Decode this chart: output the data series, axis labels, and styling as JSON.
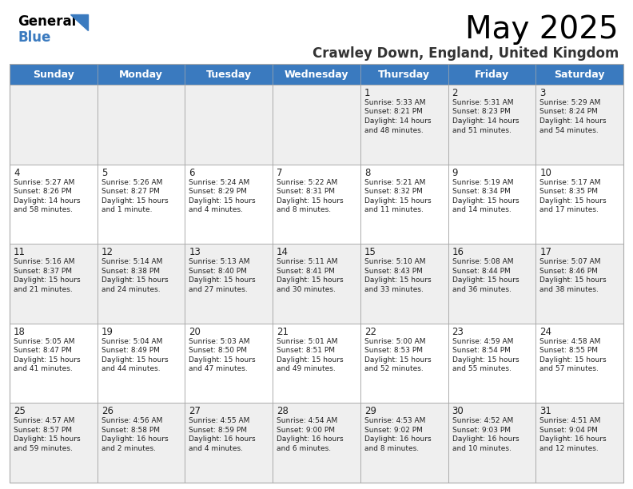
{
  "title": "May 2025",
  "subtitle": "Crawley Down, England, United Kingdom",
  "header_bg": "#3a7abf",
  "header_text": "#ffffff",
  "days_of_week": [
    "Sunday",
    "Monday",
    "Tuesday",
    "Wednesday",
    "Thursday",
    "Friday",
    "Saturday"
  ],
  "row_bg_even": "#efefef",
  "row_bg_odd": "#ffffff",
  "grid_color": "#aaaaaa",
  "text_color": "#222222",
  "calendar": [
    [
      {
        "day": "",
        "sunrise": "",
        "sunset": "",
        "daylight": ""
      },
      {
        "day": "",
        "sunrise": "",
        "sunset": "",
        "daylight": ""
      },
      {
        "day": "",
        "sunrise": "",
        "sunset": "",
        "daylight": ""
      },
      {
        "day": "",
        "sunrise": "",
        "sunset": "",
        "daylight": ""
      },
      {
        "day": "1",
        "sunrise": "5:33 AM",
        "sunset": "8:21 PM",
        "daylight": "14 hours\nand 48 minutes."
      },
      {
        "day": "2",
        "sunrise": "5:31 AM",
        "sunset": "8:23 PM",
        "daylight": "14 hours\nand 51 minutes."
      },
      {
        "day": "3",
        "sunrise": "5:29 AM",
        "sunset": "8:24 PM",
        "daylight": "14 hours\nand 54 minutes."
      }
    ],
    [
      {
        "day": "4",
        "sunrise": "5:27 AM",
        "sunset": "8:26 PM",
        "daylight": "14 hours\nand 58 minutes."
      },
      {
        "day": "5",
        "sunrise": "5:26 AM",
        "sunset": "8:27 PM",
        "daylight": "15 hours\nand 1 minute."
      },
      {
        "day": "6",
        "sunrise": "5:24 AM",
        "sunset": "8:29 PM",
        "daylight": "15 hours\nand 4 minutes."
      },
      {
        "day": "7",
        "sunrise": "5:22 AM",
        "sunset": "8:31 PM",
        "daylight": "15 hours\nand 8 minutes."
      },
      {
        "day": "8",
        "sunrise": "5:21 AM",
        "sunset": "8:32 PM",
        "daylight": "15 hours\nand 11 minutes."
      },
      {
        "day": "9",
        "sunrise": "5:19 AM",
        "sunset": "8:34 PM",
        "daylight": "15 hours\nand 14 minutes."
      },
      {
        "day": "10",
        "sunrise": "5:17 AM",
        "sunset": "8:35 PM",
        "daylight": "15 hours\nand 17 minutes."
      }
    ],
    [
      {
        "day": "11",
        "sunrise": "5:16 AM",
        "sunset": "8:37 PM",
        "daylight": "15 hours\nand 21 minutes."
      },
      {
        "day": "12",
        "sunrise": "5:14 AM",
        "sunset": "8:38 PM",
        "daylight": "15 hours\nand 24 minutes."
      },
      {
        "day": "13",
        "sunrise": "5:13 AM",
        "sunset": "8:40 PM",
        "daylight": "15 hours\nand 27 minutes."
      },
      {
        "day": "14",
        "sunrise": "5:11 AM",
        "sunset": "8:41 PM",
        "daylight": "15 hours\nand 30 minutes."
      },
      {
        "day": "15",
        "sunrise": "5:10 AM",
        "sunset": "8:43 PM",
        "daylight": "15 hours\nand 33 minutes."
      },
      {
        "day": "16",
        "sunrise": "5:08 AM",
        "sunset": "8:44 PM",
        "daylight": "15 hours\nand 36 minutes."
      },
      {
        "day": "17",
        "sunrise": "5:07 AM",
        "sunset": "8:46 PM",
        "daylight": "15 hours\nand 38 minutes."
      }
    ],
    [
      {
        "day": "18",
        "sunrise": "5:05 AM",
        "sunset": "8:47 PM",
        "daylight": "15 hours\nand 41 minutes."
      },
      {
        "day": "19",
        "sunrise": "5:04 AM",
        "sunset": "8:49 PM",
        "daylight": "15 hours\nand 44 minutes."
      },
      {
        "day": "20",
        "sunrise": "5:03 AM",
        "sunset": "8:50 PM",
        "daylight": "15 hours\nand 47 minutes."
      },
      {
        "day": "21",
        "sunrise": "5:01 AM",
        "sunset": "8:51 PM",
        "daylight": "15 hours\nand 49 minutes."
      },
      {
        "day": "22",
        "sunrise": "5:00 AM",
        "sunset": "8:53 PM",
        "daylight": "15 hours\nand 52 minutes."
      },
      {
        "day": "23",
        "sunrise": "4:59 AM",
        "sunset": "8:54 PM",
        "daylight": "15 hours\nand 55 minutes."
      },
      {
        "day": "24",
        "sunrise": "4:58 AM",
        "sunset": "8:55 PM",
        "daylight": "15 hours\nand 57 minutes."
      }
    ],
    [
      {
        "day": "25",
        "sunrise": "4:57 AM",
        "sunset": "8:57 PM",
        "daylight": "15 hours\nand 59 minutes."
      },
      {
        "day": "26",
        "sunrise": "4:56 AM",
        "sunset": "8:58 PM",
        "daylight": "16 hours\nand 2 minutes."
      },
      {
        "day": "27",
        "sunrise": "4:55 AM",
        "sunset": "8:59 PM",
        "daylight": "16 hours\nand 4 minutes."
      },
      {
        "day": "28",
        "sunrise": "4:54 AM",
        "sunset": "9:00 PM",
        "daylight": "16 hours\nand 6 minutes."
      },
      {
        "day": "29",
        "sunrise": "4:53 AM",
        "sunset": "9:02 PM",
        "daylight": "16 hours\nand 8 minutes."
      },
      {
        "day": "30",
        "sunrise": "4:52 AM",
        "sunset": "9:03 PM",
        "daylight": "16 hours\nand 10 minutes."
      },
      {
        "day": "31",
        "sunrise": "4:51 AM",
        "sunset": "9:04 PM",
        "daylight": "16 hours\nand 12 minutes."
      }
    ]
  ]
}
